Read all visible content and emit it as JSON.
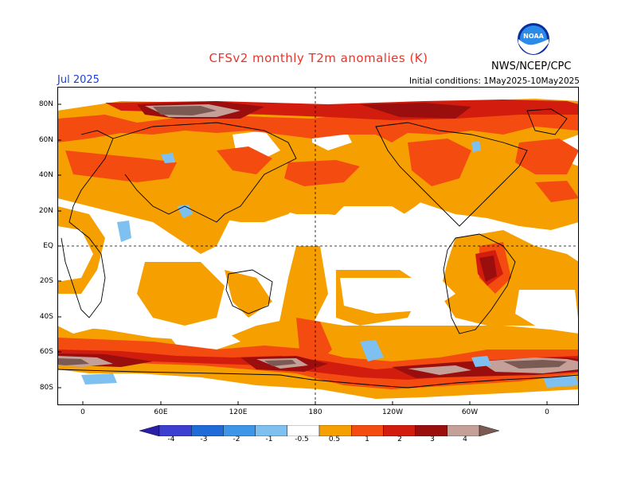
{
  "header": {
    "title": "CFSv2 monthly T2m anomalies (K)",
    "month": "Jul 2025",
    "initial_conditions": "Initial conditions: 1May2025-10May2025",
    "agency": "NWS/NCEP/CPC",
    "logo_text": "NOAA"
  },
  "axes": {
    "lat_labels": [
      "80N",
      "60N",
      "40N",
      "20N",
      "EQ",
      "20S",
      "40S",
      "60S",
      "80S"
    ],
    "lon_labels": [
      "0",
      "60E",
      "120E",
      "180",
      "120W",
      "60W",
      "0"
    ]
  },
  "colorbar": {
    "labels": [
      "-4",
      "-3",
      "-2",
      "-1",
      "-0.5",
      "0.5",
      "1",
      "2",
      "3",
      "4"
    ],
    "colors": [
      "#2b1ea8",
      "#3d3fd0",
      "#1f6cd8",
      "#3d96e8",
      "#7ec0f0",
      "#ffffff",
      "#f5a000",
      "#f44b10",
      "#d21d0e",
      "#9b0e0e",
      "#c4a099",
      "#7a5a52"
    ]
  },
  "map_colors": {
    "ocean_bg": "#ffffff",
    "weak_warm": "#f5a000",
    "warm": "#f44b10",
    "hot": "#d21d0e",
    "very_hot": "#9b0e0e",
    "extreme_pink": "#c4a099",
    "extreme_brown": "#7a5a52",
    "weak_cold": "#7ec0f0"
  }
}
